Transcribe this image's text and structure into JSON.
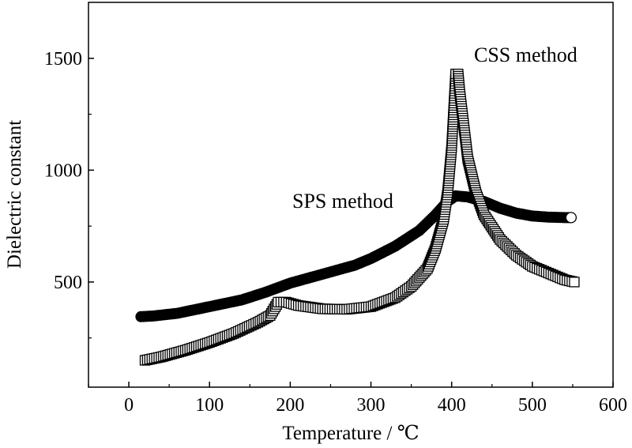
{
  "chart_data": {
    "type": "scatter",
    "xlabel": "Temperature / ℃",
    "ylabel": "Dielectric constant",
    "xlim": [
      -50,
      600
    ],
    "ylim": [
      30,
      1750
    ],
    "x_ticks": [
      0,
      100,
      200,
      300,
      400,
      500,
      600
    ],
    "y_ticks": [
      500,
      1000,
      1500
    ],
    "grid": false,
    "annotations": [
      {
        "text": "CSS method",
        "x": 496,
        "y": 1500
      },
      {
        "text": "SPS method",
        "x": 296,
        "y": 880
      }
    ],
    "series": [
      {
        "name": "SPS method",
        "marker": "circle",
        "color": "#000000",
        "x": [
          15,
          30,
          60,
          100,
          140,
          170,
          200,
          240,
          280,
          300,
          330,
          360,
          380,
          395,
          405,
          420,
          440,
          460,
          480,
          500,
          520,
          540,
          548
        ],
        "y": [
          345,
          348,
          360,
          390,
          420,
          455,
          495,
          535,
          575,
          605,
          660,
          730,
          800,
          860,
          885,
          880,
          860,
          830,
          808,
          795,
          790,
          788,
          788
        ]
      },
      {
        "name": "CSS method",
        "marker": "square",
        "color": "#000000",
        "x": [
          20,
          40,
          70,
          100,
          130,
          160,
          175,
          180,
          185,
          195,
          210,
          240,
          270,
          300,
          330,
          350,
          370,
          380,
          390,
          395,
          400,
          403,
          405,
          408,
          410,
          415,
          420,
          430,
          440,
          460,
          480,
          500,
          520,
          540,
          552
        ],
        "y": [
          150,
          165,
          195,
          230,
          270,
          320,
          350,
          380,
          410,
          410,
          395,
          380,
          378,
          390,
          430,
          480,
          560,
          650,
          780,
          900,
          1100,
          1300,
          1430,
          1430,
          1350,
          1200,
          1050,
          900,
          800,
          690,
          620,
          570,
          540,
          510,
          500
        ]
      }
    ]
  }
}
